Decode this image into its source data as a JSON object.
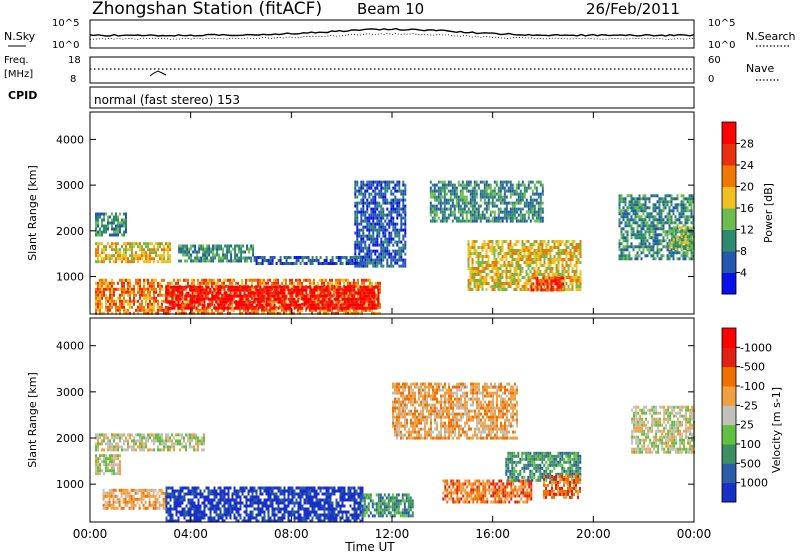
{
  "header": {
    "station": "Zhongshan Station (fitACF)",
    "beam": "Beam 10",
    "date": "26/Feb/2011"
  },
  "noise_panel": {
    "left_label": "N.Sky",
    "right_label": "N.Search",
    "left_ticks": [
      "10^5",
      "10^0"
    ],
    "right_ticks": [
      "10^5",
      "10^0"
    ]
  },
  "freq_panel": {
    "left_label_1": "Freq.",
    "left_label_2": "[MHz]",
    "left_ticks": [
      "18",
      "8"
    ],
    "right_label": "Nave",
    "right_ticks": [
      "60",
      "0"
    ]
  },
  "cpid_panel": {
    "label": "CPID",
    "text": "normal (fast stereo) 153"
  },
  "colors": {
    "frame": "#000000",
    "ground_scatter": "#c0c0bc"
  },
  "chart_data": [
    {
      "type": "heatmap",
      "title": "",
      "xlabel": "Time UT",
      "ylabel": "Slant Range [km]",
      "x_ticks": [
        "00:00",
        "04:00",
        "08:00",
        "12:00",
        "16:00",
        "20:00",
        "00:00"
      ],
      "xlim_hours": [
        0,
        24
      ],
      "y_ticks": [
        1000,
        2000,
        3000,
        4000
      ],
      "ylim": [
        180,
        4600
      ],
      "colorbar": {
        "label": "Power [dB]",
        "ticks": [
          "4",
          "8",
          "12",
          "16",
          "20",
          "24",
          "28"
        ],
        "colors": [
          "#0a10e8",
          "#2458b0",
          "#2e8a6e",
          "#6cbc4e",
          "#f0c020",
          "#f07800",
          "#e83010",
          "#ff0000"
        ]
      },
      "regions": [
        {
          "t0": 0.2,
          "t1": 11.5,
          "r0": 200,
          "r1": 950,
          "level": 5
        },
        {
          "t0": 3.0,
          "t1": 11.5,
          "r0": 300,
          "r1": 800,
          "level": 7
        },
        {
          "t0": 0.2,
          "t1": 3.2,
          "r0": 1300,
          "r1": 1750,
          "level": 4
        },
        {
          "t0": 0.2,
          "t1": 1.4,
          "r0": 1900,
          "r1": 2400,
          "level": 2
        },
        {
          "t0": 3.5,
          "t1": 6.5,
          "r0": 1350,
          "r1": 1700,
          "level": 2
        },
        {
          "t0": 6.5,
          "t1": 10.8,
          "r0": 1300,
          "r1": 1450,
          "level": 1
        },
        {
          "t0": 10.5,
          "t1": 12.5,
          "r0": 1200,
          "r1": 3100,
          "level": 1
        },
        {
          "t0": 13.5,
          "t1": 18.0,
          "r0": 2200,
          "r1": 3100,
          "level": 2
        },
        {
          "t0": 15.0,
          "t1": 19.5,
          "r0": 700,
          "r1": 1800,
          "level": 4
        },
        {
          "t0": 17.5,
          "t1": 18.8,
          "r0": 700,
          "r1": 1000,
          "level": 6
        },
        {
          "t0": 21.0,
          "t1": 24.0,
          "r0": 1400,
          "r1": 2800,
          "level": 2
        },
        {
          "t0": 23.0,
          "t1": 24.0,
          "r0": 1600,
          "r1": 2100,
          "level": 3
        }
      ]
    },
    {
      "type": "heatmap",
      "title": "",
      "xlabel": "Time UT",
      "ylabel": "Slant Range [km]",
      "x_ticks": [
        "00:00",
        "04:00",
        "08:00",
        "12:00",
        "16:00",
        "20:00",
        "00:00"
      ],
      "xlim_hours": [
        0,
        24
      ],
      "y_ticks": [
        1000,
        2000,
        3000,
        4000
      ],
      "ylim": [
        180,
        4600
      ],
      "colorbar": {
        "label": "Velocity [m s-1]",
        "ticks": [
          "1000",
          "500",
          "100",
          "25",
          "-25",
          "-100",
          "-500",
          "-1000"
        ],
        "colors": [
          "#1830c8",
          "#2a5ca8",
          "#3a9060",
          "#60c040",
          "#c0c0bc",
          "#f0a040",
          "#f07000",
          "#e02010",
          "#ff0000"
        ]
      },
      "regions": [
        {
          "t0": 0.2,
          "t1": 4.5,
          "r0": 1750,
          "r1": 2100,
          "level": 4
        },
        {
          "t0": 0.2,
          "t1": 1.2,
          "r0": 1200,
          "r1": 1650,
          "level": 4
        },
        {
          "t0": 0.5,
          "t1": 3.0,
          "r0": 500,
          "r1": 900,
          "level": 5
        },
        {
          "t0": 3.0,
          "t1": 10.8,
          "r0": 200,
          "r1": 950,
          "level": 0
        },
        {
          "t0": 10.8,
          "t1": 12.8,
          "r0": 300,
          "r1": 800,
          "level": 2
        },
        {
          "t0": 12.0,
          "t1": 17.0,
          "r0": 2000,
          "r1": 3200,
          "level": 5
        },
        {
          "t0": 14.0,
          "t1": 17.5,
          "r0": 600,
          "r1": 1100,
          "level": 6
        },
        {
          "t0": 16.5,
          "t1": 19.5,
          "r0": 1100,
          "r1": 1700,
          "level": 2
        },
        {
          "t0": 18.0,
          "t1": 19.5,
          "r0": 700,
          "r1": 1200,
          "level": 6
        },
        {
          "t0": 21.5,
          "t1": 24.0,
          "r0": 1700,
          "r1": 2700,
          "level": 4
        }
      ]
    }
  ]
}
